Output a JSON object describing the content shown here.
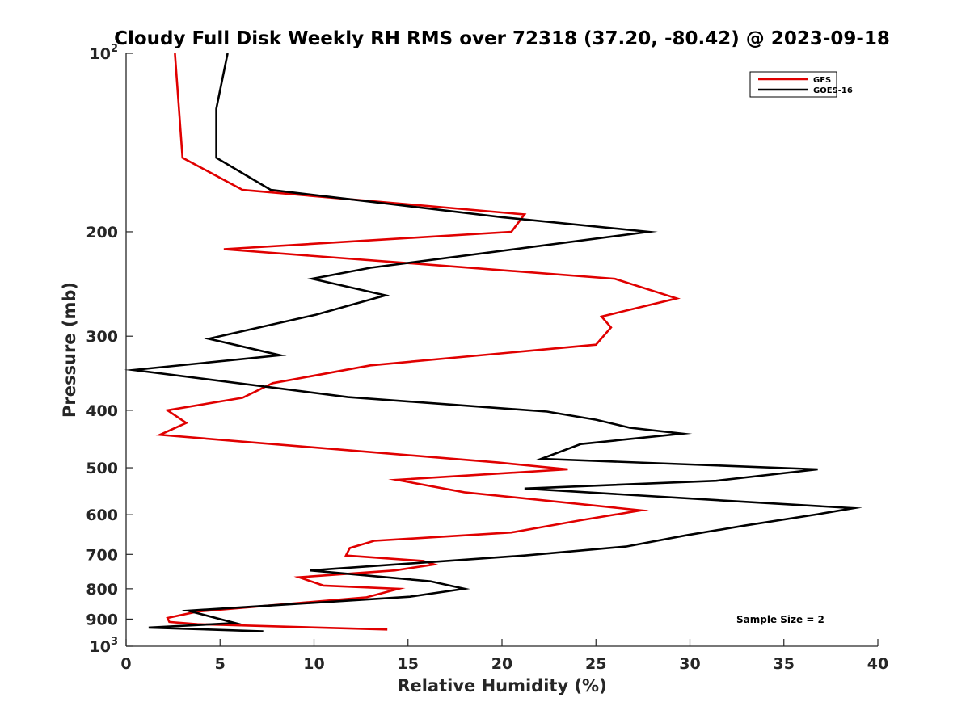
{
  "chart_data": {
    "type": "line",
    "title": "Cloudy Full Disk Weekly RH RMS over 72318 (37.20, -80.42) @ 2023-09-18",
    "xlabel": "Relative Humidity (%)",
    "ylabel": "Pressure (mb)",
    "xlim": [
      0,
      40
    ],
    "ylim": [
      100,
      1000
    ],
    "yscale": "log",
    "y_reversed": true,
    "x_ticks": [
      "0",
      "5",
      "10",
      "15",
      "20",
      "25",
      "30",
      "35",
      "40"
    ],
    "y_ticks": [
      {
        "value": 100,
        "base": "10",
        "exp": "2"
      },
      {
        "value": 200,
        "label": "200"
      },
      {
        "value": 300,
        "label": "300"
      },
      {
        "value": 400,
        "label": "400"
      },
      {
        "value": 500,
        "label": "500"
      },
      {
        "value": 600,
        "label": "600"
      },
      {
        "value": 700,
        "label": "700"
      },
      {
        "value": 800,
        "label": "800"
      },
      {
        "value": 900,
        "label": "900"
      },
      {
        "value": 1000,
        "base": "10",
        "exp": "3"
      }
    ],
    "legend_position": "top-right",
    "annotation": "Sample Size = 2",
    "series": [
      {
        "name": "GFS",
        "color": "#e00000",
        "points": [
          [
            2.6,
            100
          ],
          [
            3.0,
            150
          ],
          [
            6.2,
            170
          ],
          [
            21.2,
            187
          ],
          [
            20.5,
            200
          ],
          [
            5.2,
            214
          ],
          [
            26.0,
            240
          ],
          [
            29.3,
            259
          ],
          [
            25.3,
            278
          ],
          [
            25.8,
            290
          ],
          [
            25.0,
            310
          ],
          [
            13.0,
            336
          ],
          [
            7.8,
            360
          ],
          [
            6.2,
            381
          ],
          [
            2.2,
            400
          ],
          [
            3.2,
            420
          ],
          [
            1.8,
            440
          ],
          [
            19.8,
            490
          ],
          [
            23.5,
            503
          ],
          [
            14.4,
            524
          ],
          [
            18.0,
            550
          ],
          [
            27.4,
            590
          ],
          [
            24.2,
            613
          ],
          [
            20.5,
            643
          ],
          [
            13.2,
            664
          ],
          [
            11.9,
            683
          ],
          [
            11.7,
            703
          ],
          [
            15.8,
            718
          ],
          [
            16.4,
            728
          ],
          [
            14.3,
            745
          ],
          [
            9.2,
            765
          ],
          [
            10.5,
            790
          ],
          [
            14.5,
            800
          ],
          [
            12.8,
            827
          ],
          [
            3.8,
            874
          ],
          [
            2.2,
            896
          ],
          [
            2.3,
            910
          ],
          [
            3.8,
            918
          ],
          [
            13.9,
            937
          ]
        ]
      },
      {
        "name": "GOES-16",
        "color": "#000000",
        "points": [
          [
            5.4,
            100
          ],
          [
            4.8,
            124
          ],
          [
            4.8,
            150
          ],
          [
            7.7,
            170
          ],
          [
            20.0,
            189
          ],
          [
            27.8,
            200
          ],
          [
            13.0,
            230
          ],
          [
            9.9,
            240
          ],
          [
            13.8,
            256
          ],
          [
            10.1,
            276
          ],
          [
            4.4,
            303
          ],
          [
            8.2,
            323
          ],
          [
            0.4,
            342
          ],
          [
            11.8,
            380
          ],
          [
            22.4,
            402
          ],
          [
            25.0,
            415
          ],
          [
            26.8,
            428
          ],
          [
            29.6,
            438
          ],
          [
            24.2,
            456
          ],
          [
            22.1,
            483
          ],
          [
            36.8,
            503
          ],
          [
            31.4,
            526
          ],
          [
            21.2,
            542
          ],
          [
            31.4,
            567
          ],
          [
            38.7,
            585
          ],
          [
            36.8,
            599
          ],
          [
            32.9,
            626
          ],
          [
            29.8,
            650
          ],
          [
            26.6,
            679
          ],
          [
            21.2,
            703
          ],
          [
            9.8,
            745
          ],
          [
            16.2,
            777
          ],
          [
            18.0,
            800
          ],
          [
            15.1,
            825
          ],
          [
            3.3,
            871
          ],
          [
            5.8,
            914
          ],
          [
            1.2,
            930
          ],
          [
            7.3,
            944
          ]
        ]
      }
    ]
  }
}
